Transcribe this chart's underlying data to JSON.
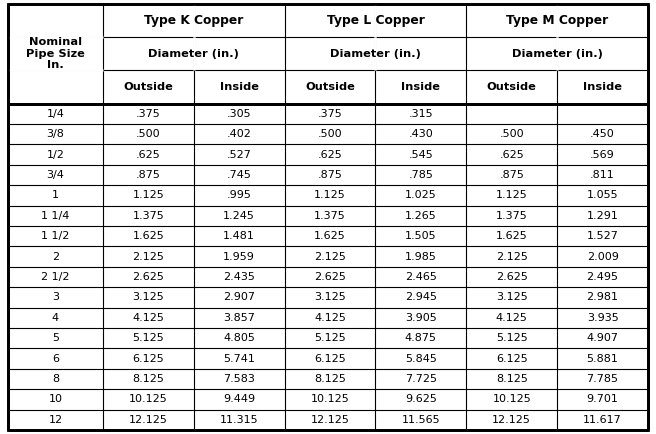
{
  "rows": [
    [
      "1/4",
      ".375",
      ".305",
      ".375",
      ".315",
      "",
      ""
    ],
    [
      "3/8",
      ".500",
      ".402",
      ".500",
      ".430",
      ".500",
      ".450"
    ],
    [
      "1/2",
      ".625",
      ".527",
      ".625",
      ".545",
      ".625",
      ".569"
    ],
    [
      "3/4",
      ".875",
      ".745",
      ".875",
      ".785",
      ".875",
      ".811"
    ],
    [
      "1",
      "1.125",
      ".995",
      "1.125",
      "1.025",
      "1.125",
      "1.055"
    ],
    [
      "1 1/4",
      "1.375",
      "1.245",
      "1.375",
      "1.265",
      "1.375",
      "1.291"
    ],
    [
      "1 1/2",
      "1.625",
      "1.481",
      "1.625",
      "1.505",
      "1.625",
      "1.527"
    ],
    [
      "2",
      "2.125",
      "1.959",
      "2.125",
      "1.985",
      "2.125",
      "2.009"
    ],
    [
      "2 1/2",
      "2.625",
      "2.435",
      "2.625",
      "2.465",
      "2.625",
      "2.495"
    ],
    [
      "3",
      "3.125",
      "2.907",
      "3.125",
      "2.945",
      "3.125",
      "2.981"
    ],
    [
      "4",
      "4.125",
      "3.857",
      "4.125",
      "3.905",
      "4.125",
      "3.935"
    ],
    [
      "5",
      "5.125",
      "4.805",
      "5.125",
      "4.875",
      "5.125",
      "4.907"
    ],
    [
      "6",
      "6.125",
      "5.741",
      "6.125",
      "5.845",
      "6.125",
      "5.881"
    ],
    [
      "8",
      "8.125",
      "7.583",
      "8.125",
      "7.725",
      "8.125",
      "7.785"
    ],
    [
      "10",
      "10.125",
      "9.449",
      "10.125",
      "9.625",
      "10.125",
      "9.701"
    ],
    [
      "12",
      "12.125",
      "11.315",
      "12.125",
      "11.565",
      "12.125",
      "11.617"
    ]
  ],
  "bg_color": "#ffffff",
  "border_color": "#000000",
  "text_color": "#000000",
  "lw_outer": 2.0,
  "lw_thin": 0.8,
  "lw_thick": 2.0
}
